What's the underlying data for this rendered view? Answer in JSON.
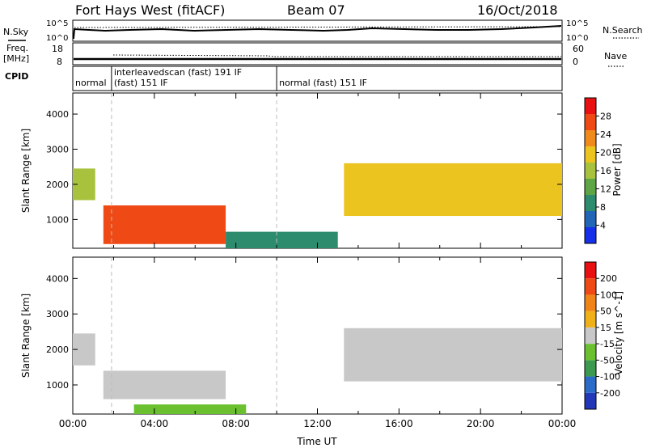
{
  "header": {
    "station": "Fort Hays West (fitACF)",
    "beam": "Beam 07",
    "date": "16/Oct/2018"
  },
  "strips": {
    "noise": {
      "left_label": "N.Sky",
      "right_label": "N.Search",
      "left_ticks": [
        "10^5",
        "10^0"
      ],
      "right_ticks": [
        "10^5",
        "10^0"
      ]
    },
    "freq": {
      "left_label_top": "Freq.",
      "left_label_bottom": "[MHz]",
      "right_label": "Nave",
      "left_ticks": [
        "18",
        "8"
      ],
      "right_ticks": [
        "60",
        "0"
      ]
    },
    "cpid": {
      "label": "CPID",
      "segments": [
        {
          "start_h": 0.0,
          "end_h": 1.9,
          "text": "normal",
          "text2": ""
        },
        {
          "start_h": 1.9,
          "end_h": 10.0,
          "text": "interleavedscan (fast) 191 IF",
          "text2": "(fast) 151 IF"
        },
        {
          "start_h": 10.0,
          "end_h": 24.0,
          "text": "normal (fast) 151 IF",
          "text2": ""
        }
      ]
    }
  },
  "chart_data": [
    {
      "type": "heatmap",
      "name": "power",
      "xlabel": "",
      "ylabel": "Slant Range [km]",
      "xlim": [
        0,
        24
      ],
      "ylim": [
        180,
        4600
      ],
      "yticks": [
        1000,
        2000,
        3000,
        4000
      ],
      "colorbar": {
        "label": "Power [dB]",
        "ticks": [
          "4",
          "8",
          "12",
          "16",
          "20",
          "24",
          "28"
        ],
        "colors": [
          "#1530e8",
          "#2266b8",
          "#2e8c6e",
          "#5ea545",
          "#a8c23e",
          "#ecc41f",
          "#f08a1c",
          "#ef4a16",
          "#e81010"
        ]
      },
      "regions": [
        {
          "t0": 0.0,
          "t1": 1.1,
          "r0": 1550,
          "r1": 2450,
          "val": 16
        },
        {
          "t0": 1.5,
          "t1": 7.5,
          "r0": 300,
          "r1": 1400,
          "val": 26
        },
        {
          "t0": 7.5,
          "t1": 13.0,
          "r0": 180,
          "r1": 650,
          "val": 9
        },
        {
          "t0": 13.3,
          "t1": 24.0,
          "r0": 1100,
          "r1": 2600,
          "val": 20
        }
      ]
    },
    {
      "type": "heatmap",
      "name": "velocity",
      "xlabel": "Time UT",
      "ylabel": "Slant Range [km]",
      "xlim": [
        0,
        24
      ],
      "ylim": [
        180,
        4600
      ],
      "yticks": [
        1000,
        2000,
        3000,
        4000
      ],
      "xticks": [
        "00:00",
        "04:00",
        "08:00",
        "12:00",
        "16:00",
        "20:00",
        "00:00"
      ],
      "colorbar": {
        "label": "Velocity [m s^-1]",
        "ticks": [
          "200",
          "100",
          "50",
          "15",
          "-15",
          "-50",
          "-100",
          "-200"
        ],
        "colors": [
          "#2238b8",
          "#2a6cc8",
          "#3c9a50",
          "#6ac02e",
          "#c8c8c8",
          "#f0b018",
          "#f08418",
          "#ef4a16",
          "#e81010"
        ]
      },
      "regions": [
        {
          "t0": 0.0,
          "t1": 1.1,
          "r0": 1550,
          "r1": 2450,
          "val": 0
        },
        {
          "t0": 1.5,
          "t1": 7.5,
          "r0": 600,
          "r1": 1400,
          "val": 0
        },
        {
          "t0": 3.0,
          "t1": 8.5,
          "r0": 180,
          "r1": 450,
          "val": 40
        },
        {
          "t0": 13.3,
          "t1": 24.0,
          "r0": 1100,
          "r1": 2600,
          "val": 0
        }
      ]
    }
  ]
}
